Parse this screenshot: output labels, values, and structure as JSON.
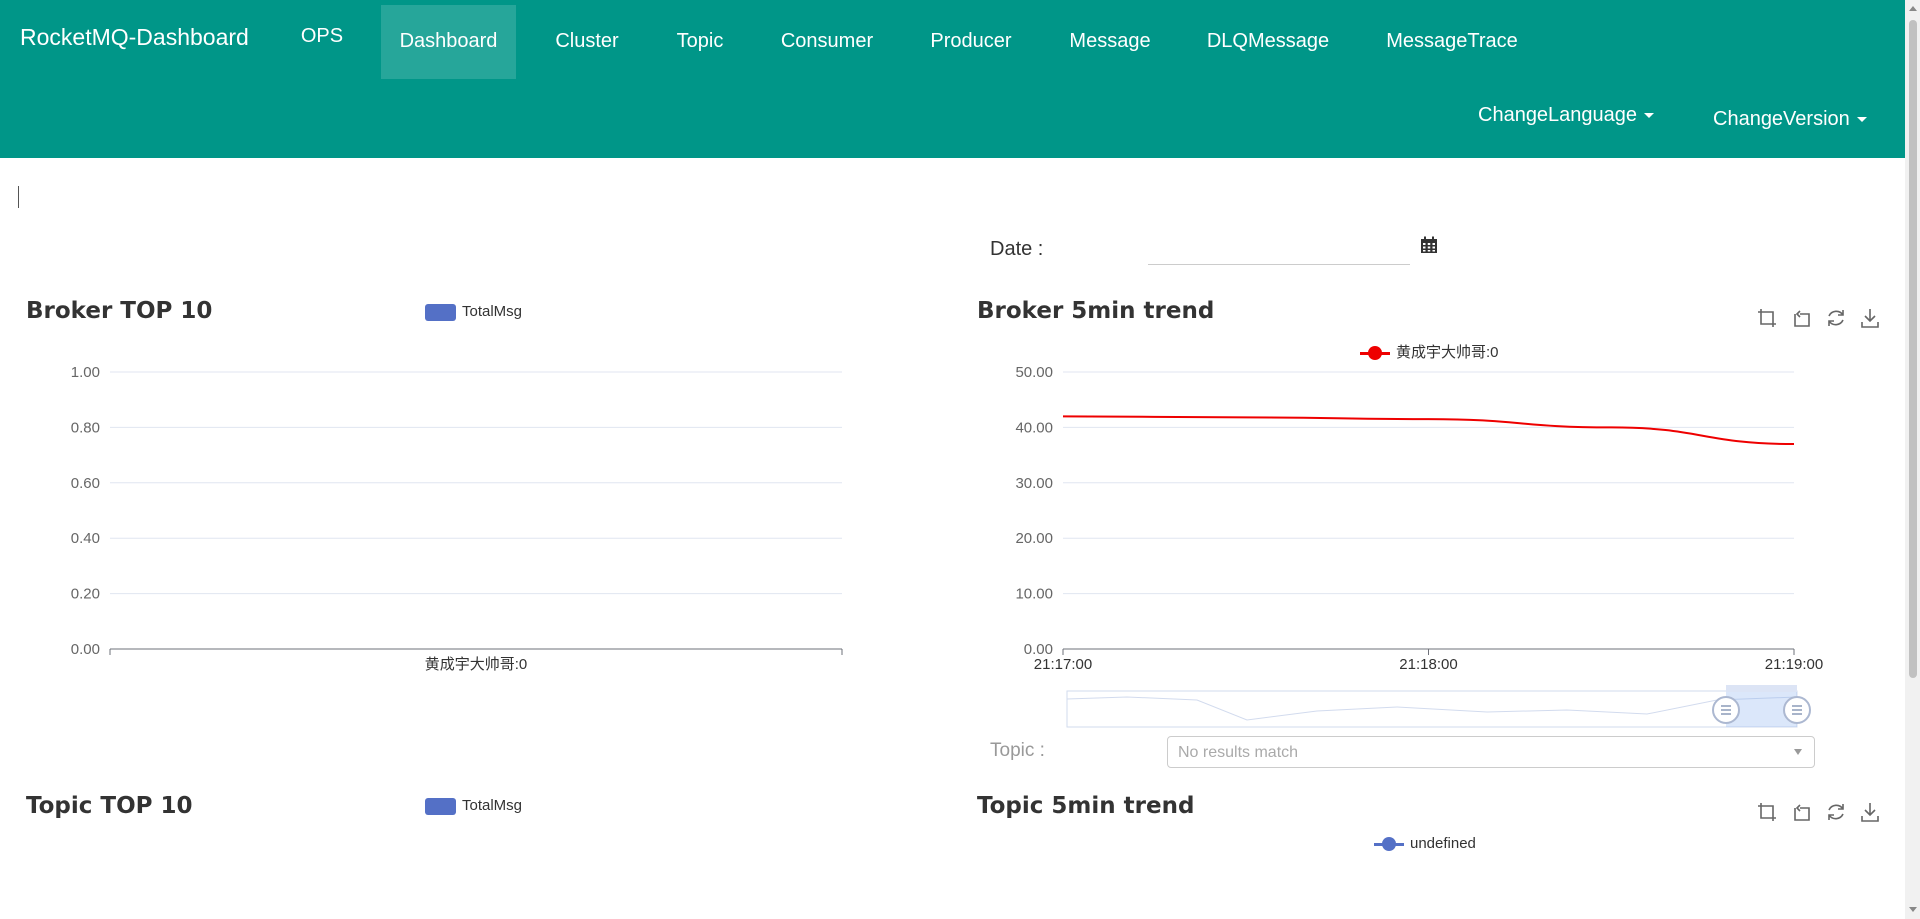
{
  "nav": {
    "brand": "RocketMQ-Dashboard",
    "items": [
      "OPS",
      "Dashboard",
      "Cluster",
      "Topic",
      "Consumer",
      "Producer",
      "Message",
      "DLQMessage",
      "MessageTrace"
    ],
    "active": "Dashboard",
    "change_language": "ChangeLanguage",
    "change_version": "ChangeVersion"
  },
  "filters": {
    "date_label": "Date :",
    "date_value": "",
    "topic_label": "Topic :",
    "topic_placeholder": "No results match"
  },
  "colors": {
    "navbar": "#009688",
    "nav_active": "#26a69a",
    "bar_series": "#5470c6",
    "broker_trend_line": "#ee0000",
    "topic_trend_line": "#5470c6"
  },
  "icons": {
    "toolbox": [
      "zoom-icon",
      "zoom-reset-icon",
      "restore-icon",
      "download-icon"
    ],
    "calendar": "calendar-icon"
  },
  "panels": {
    "broker_top": {
      "title": "Broker TOP 10",
      "legend": "TotalMsg"
    },
    "broker_trend": {
      "title": "Broker 5min trend",
      "legend": "黄成宇大帅哥:0"
    },
    "topic_top": {
      "title": "Topic TOP 10",
      "legend": "TotalMsg"
    },
    "topic_trend": {
      "title": "Topic 5min trend",
      "legend": "undefined"
    }
  },
  "chart_data": [
    {
      "type": "bar",
      "title": "Broker TOP 10",
      "categories": [
        "黄成宇大帅哥:0"
      ],
      "series": [
        {
          "name": "TotalMsg",
          "values": [
            0
          ]
        }
      ],
      "ylim": [
        0,
        1
      ],
      "yticks": [
        "0.00",
        "0.20",
        "0.40",
        "0.60",
        "0.80",
        "1.00"
      ],
      "grid": true,
      "legend_position": "top"
    },
    {
      "type": "line",
      "title": "Broker 5min trend",
      "x": [
        "21:17:00",
        "21:17:30",
        "21:18:00",
        "21:18:30",
        "21:19:00"
      ],
      "x_ticks": [
        "21:17:00",
        "21:18:00",
        "21:19:00"
      ],
      "series": [
        {
          "name": "黄成宇大帅哥:0",
          "values": [
            42,
            41.8,
            41.5,
            40,
            37
          ]
        }
      ],
      "ylim": [
        0,
        50
      ],
      "yticks": [
        "0.00",
        "10.00",
        "20.00",
        "30.00",
        "40.00",
        "50.00"
      ],
      "grid": true,
      "legend_position": "top",
      "data_zoom": true
    }
  ]
}
